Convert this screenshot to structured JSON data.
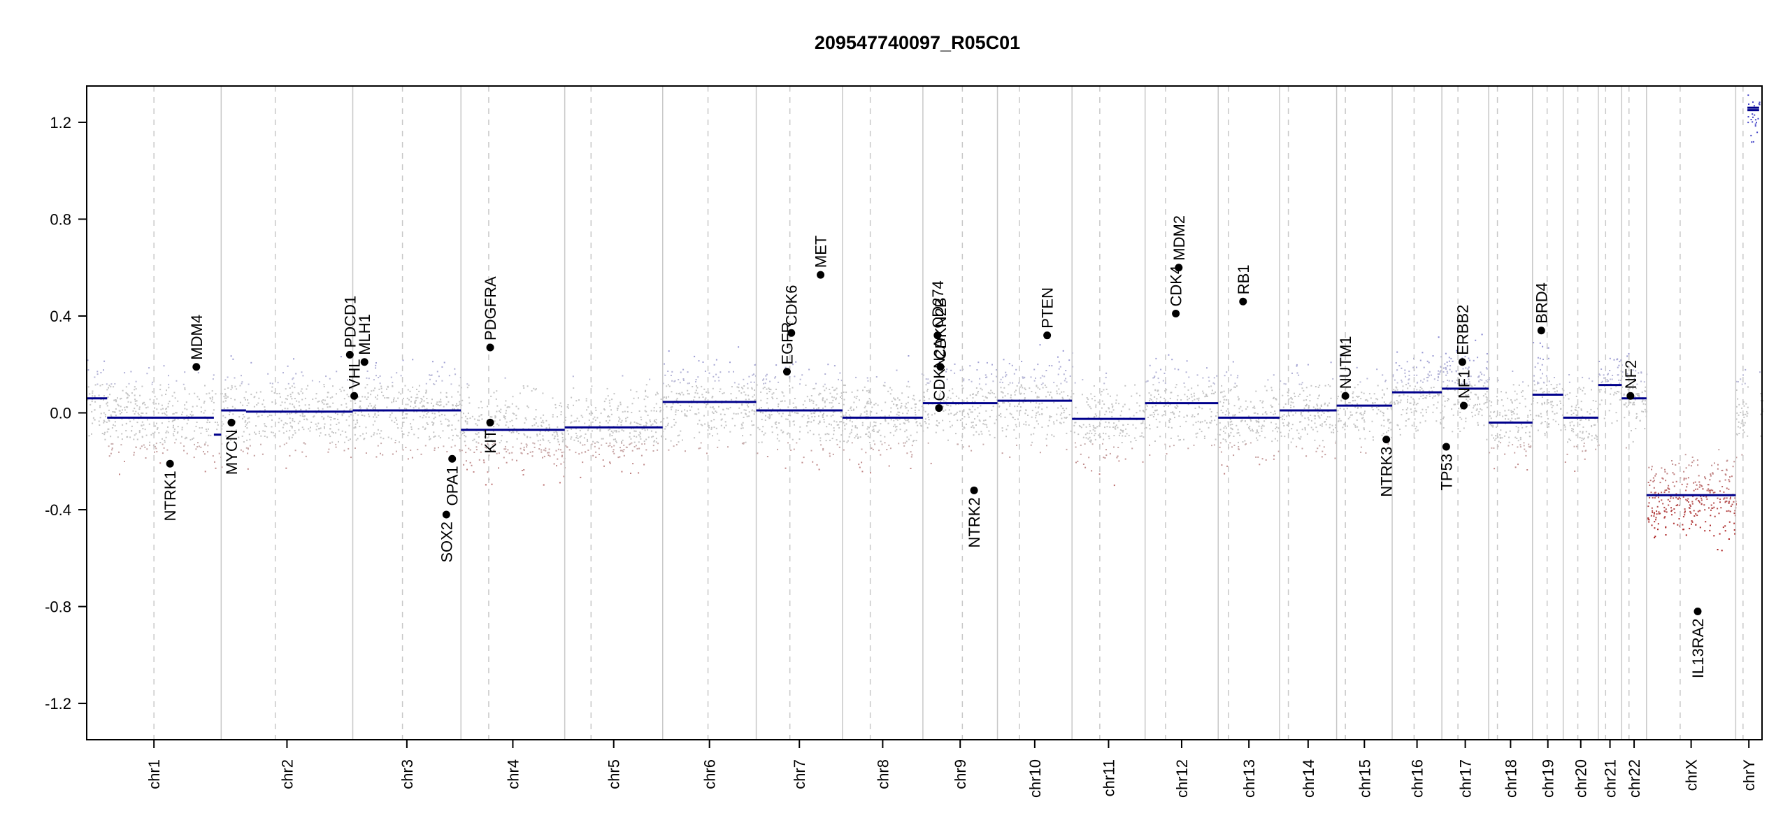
{
  "chart_data": {
    "type": "scatter",
    "title": "209547740097_R05C01",
    "xlabel": "",
    "ylabel": "",
    "ylim": [
      -1.35,
      1.35
    ],
    "yticks": [
      -1.2,
      -0.8,
      -0.4,
      0.0,
      0.4,
      0.8,
      1.2
    ],
    "ytick_labels": [
      "-1.2",
      "-0.8",
      "-0.4",
      "0.0",
      "0.4",
      "0.8",
      "1.2"
    ],
    "colors": {
      "gain": "#3b3bb0",
      "neutral": "#b8b8b8",
      "loss": "#b22222",
      "segment": "#00008b",
      "gene": "#000000",
      "chrline": "#c8c8c8"
    },
    "chromosomes": [
      {
        "name": "chr1",
        "start": 0.0,
        "end": 9.2,
        "centromere": 4.6
      },
      {
        "name": "chr2",
        "start": 9.2,
        "end": 18.2,
        "centromere": 12.9
      },
      {
        "name": "chr3",
        "start": 18.2,
        "end": 25.6,
        "centromere": 21.6
      },
      {
        "name": "chr4",
        "start": 25.6,
        "end": 32.7,
        "centromere": 27.5
      },
      {
        "name": "chr5",
        "start": 32.7,
        "end": 39.4,
        "centromere": 34.5
      },
      {
        "name": "chr6",
        "start": 39.4,
        "end": 45.8,
        "centromere": 42.5
      },
      {
        "name": "chr7",
        "start": 45.8,
        "end": 51.7,
        "centromere": 48.1
      },
      {
        "name": "chr8",
        "start": 51.7,
        "end": 57.2,
        "centromere": 53.6
      },
      {
        "name": "chr9",
        "start": 57.2,
        "end": 62.3,
        "centromere": 59.9
      },
      {
        "name": "chr10",
        "start": 62.3,
        "end": 67.4,
        "centromere": 63.8
      },
      {
        "name": "chr11",
        "start": 67.4,
        "end": 72.4,
        "centromere": 69.3
      },
      {
        "name": "chr12",
        "start": 72.4,
        "end": 77.4,
        "centromere": 73.8
      },
      {
        "name": "chr13",
        "start": 77.4,
        "end": 81.6,
        "centromere": 78.1
      },
      {
        "name": "chr14",
        "start": 81.6,
        "end": 85.5,
        "centromere": 82.2
      },
      {
        "name": "chr15",
        "start": 85.5,
        "end": 89.3,
        "centromere": 86.1
      },
      {
        "name": "chr16",
        "start": 89.3,
        "end": 92.7,
        "centromere": 90.8
      },
      {
        "name": "chr17",
        "start": 92.7,
        "end": 95.9,
        "centromere": 93.8
      },
      {
        "name": "chr18",
        "start": 95.9,
        "end": 98.9,
        "centromere": 96.5
      },
      {
        "name": "chr19",
        "start": 98.9,
        "end": 101.0,
        "centromere": 99.9
      },
      {
        "name": "chr20",
        "start": 101.0,
        "end": 103.4,
        "centromere": 102.0
      },
      {
        "name": "chr21",
        "start": 103.4,
        "end": 105.0,
        "centromere": 103.9
      },
      {
        "name": "chr22",
        "start": 105.0,
        "end": 106.7,
        "centromere": 105.5
      },
      {
        "name": "chrX",
        "start": 106.7,
        "end": 112.8,
        "centromere": 109.0
      },
      {
        "name": "chrY",
        "start": 112.8,
        "end": 114.6,
        "centromere": 113.3
      }
    ],
    "segments": [
      {
        "chr": "chr1",
        "x0": 0.0,
        "x1": 1.4,
        "y": 0.06
      },
      {
        "chr": "chr1",
        "x0": 1.4,
        "x1": 8.7,
        "y": -0.02
      },
      {
        "chr": "chr1",
        "x0": 8.7,
        "x1": 9.2,
        "y": -0.09
      },
      {
        "chr": "chr2",
        "x0": 9.2,
        "x1": 10.9,
        "y": 0.01
      },
      {
        "chr": "chr2",
        "x0": 10.9,
        "x1": 18.2,
        "y": 0.005
      },
      {
        "chr": "chr3",
        "x0": 18.2,
        "x1": 25.6,
        "y": 0.01
      },
      {
        "chr": "chr4",
        "x0": 25.6,
        "x1": 32.7,
        "y": -0.07
      },
      {
        "chr": "chr5",
        "x0": 32.7,
        "x1": 39.4,
        "y": -0.06
      },
      {
        "chr": "chr6",
        "x0": 39.4,
        "x1": 45.8,
        "y": 0.045
      },
      {
        "chr": "chr7",
        "x0": 45.8,
        "x1": 51.7,
        "y": 0.01
      },
      {
        "chr": "chr8",
        "x0": 51.7,
        "x1": 57.2,
        "y": -0.02
      },
      {
        "chr": "chr9",
        "x0": 57.2,
        "x1": 62.3,
        "y": 0.04
      },
      {
        "chr": "chr10",
        "x0": 62.3,
        "x1": 67.4,
        "y": 0.05
      },
      {
        "chr": "chr11",
        "x0": 67.4,
        "x1": 72.4,
        "y": -0.025
      },
      {
        "chr": "chr12",
        "x0": 72.4,
        "x1": 77.4,
        "y": 0.04
      },
      {
        "chr": "chr13",
        "x0": 77.4,
        "x1": 81.6,
        "y": -0.02
      },
      {
        "chr": "chr14",
        "x0": 81.6,
        "x1": 85.5,
        "y": 0.01
      },
      {
        "chr": "chr15",
        "x0": 85.5,
        "x1": 89.3,
        "y": 0.03
      },
      {
        "chr": "chr16",
        "x0": 89.3,
        "x1": 92.7,
        "y": 0.085
      },
      {
        "chr": "chr17",
        "x0": 92.7,
        "x1": 95.9,
        "y": 0.1
      },
      {
        "chr": "chr18",
        "x0": 95.9,
        "x1": 98.9,
        "y": -0.04
      },
      {
        "chr": "chr19",
        "x0": 98.9,
        "x1": 101.0,
        "y": 0.075
      },
      {
        "chr": "chr20",
        "x0": 101.0,
        "x1": 103.4,
        "y": -0.02
      },
      {
        "chr": "chr21",
        "x0": 103.4,
        "x1": 105.0,
        "y": 0.115
      },
      {
        "chr": "chr22",
        "x0": 105.0,
        "x1": 106.7,
        "y": 0.06
      },
      {
        "chr": "chrX",
        "x0": 106.7,
        "x1": 112.8,
        "y": -0.34
      },
      {
        "chr": "chrY",
        "x0": 113.6,
        "x1": 114.4,
        "y": 1.26
      },
      {
        "chr": "chrY",
        "x0": 113.6,
        "x1": 114.4,
        "y": 1.25
      }
    ],
    "genes": [
      {
        "name": "NTRK1",
        "x": 5.7,
        "y": -0.21,
        "label_pos": "below"
      },
      {
        "name": "MDM4",
        "x": 7.5,
        "y": 0.19,
        "label_pos": "above"
      },
      {
        "name": "MYCN",
        "x": 9.9,
        "y": -0.04,
        "label_pos": "below"
      },
      {
        "name": "VHL",
        "x": 18.3,
        "y": 0.07,
        "label_pos": "above"
      },
      {
        "name": "PDCD1",
        "x": 18.0,
        "y": 0.24,
        "label_pos": "above"
      },
      {
        "name": "MLH1",
        "x": 19.0,
        "y": 0.21,
        "label_pos": "above"
      },
      {
        "name": "SOX2",
        "x": 24.6,
        "y": -0.42,
        "label_pos": "below"
      },
      {
        "name": "OPA1",
        "x": 25.0,
        "y": -0.19,
        "label_pos": "below"
      },
      {
        "name": "PDGFRA",
        "x": 27.6,
        "y": 0.27,
        "label_pos": "above"
      },
      {
        "name": "KIT",
        "x": 27.6,
        "y": -0.04,
        "label_pos": "below"
      },
      {
        "name": "EGFR",
        "x": 47.9,
        "y": 0.17,
        "label_pos": "above"
      },
      {
        "name": "CDK6",
        "x": 48.2,
        "y": 0.33,
        "label_pos": "above"
      },
      {
        "name": "MET",
        "x": 50.2,
        "y": 0.57,
        "label_pos": "above"
      },
      {
        "name": "CD274",
        "x": 58.2,
        "y": 0.32,
        "label_pos": "above"
      },
      {
        "name": "CDKN2A",
        "x": 58.3,
        "y": 0.02,
        "label_pos": "above"
      },
      {
        "name": "CDKN2B",
        "x": 58.4,
        "y": 0.19,
        "label_pos": "above"
      },
      {
        "name": "NTRK2",
        "x": 60.7,
        "y": -0.32,
        "label_pos": "below"
      },
      {
        "name": "PTEN",
        "x": 65.7,
        "y": 0.32,
        "label_pos": "above"
      },
      {
        "name": "CDK4",
        "x": 74.5,
        "y": 0.41,
        "label_pos": "above"
      },
      {
        "name": "MDM2",
        "x": 74.7,
        "y": 0.6,
        "label_pos": "above"
      },
      {
        "name": "RB1",
        "x": 79.1,
        "y": 0.46,
        "label_pos": "above"
      },
      {
        "name": "NUTM1",
        "x": 86.1,
        "y": 0.07,
        "label_pos": "above"
      },
      {
        "name": "NTRK3",
        "x": 88.9,
        "y": -0.11,
        "label_pos": "below"
      },
      {
        "name": "TP53",
        "x": 93.0,
        "y": -0.14,
        "label_pos": "below"
      },
      {
        "name": "ERBB2",
        "x": 94.1,
        "y": 0.21,
        "label_pos": "above"
      },
      {
        "name": "NF1",
        "x": 94.2,
        "y": 0.03,
        "label_pos": "above"
      },
      {
        "name": "BRD4",
        "x": 99.5,
        "y": 0.34,
        "label_pos": "above"
      },
      {
        "name": "NF2",
        "x": 105.6,
        "y": 0.07,
        "label_pos": "above"
      },
      {
        "name": "IL13RA2",
        "x": 110.2,
        "y": -0.82,
        "label_pos": "below"
      }
    ]
  }
}
